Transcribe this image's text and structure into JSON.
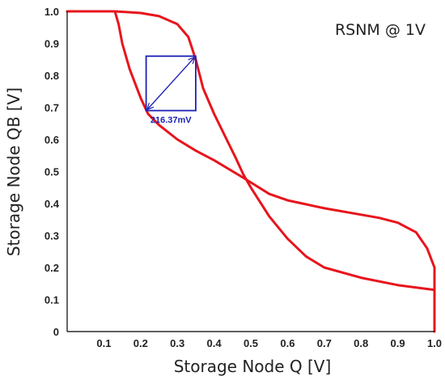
{
  "chart_data": {
    "type": "line",
    "title": "",
    "xlabel": "Storage Node Q [V]",
    "ylabel": "Storage Node QB [V]",
    "annotation": "RSNM @ 1V",
    "xlim": [
      0,
      1
    ],
    "ylim": [
      0,
      1
    ],
    "x_ticks": [
      "0.1",
      "0.2",
      "0.3",
      "0.4",
      "0.5",
      "0.6",
      "0.7",
      "0.8",
      "0.9",
      "1.0"
    ],
    "y_ticks": [
      "0",
      "0.1",
      "0.2",
      "0.3",
      "0.4",
      "0.5",
      "0.6",
      "0.7",
      "0.8",
      "0.9",
      "1.0"
    ],
    "grid": false,
    "colors": {
      "curve": "#e8141c",
      "square": "#1c22b4",
      "axis": "#000000"
    },
    "series": [
      {
        "points": [
          [
            0.0,
            1.0
          ],
          [
            0.13,
            1.0
          ],
          [
            0.2,
            0.995
          ],
          [
            0.25,
            0.985
          ],
          [
            0.3,
            0.96
          ],
          [
            0.33,
            0.92
          ],
          [
            0.35,
            0.85
          ],
          [
            0.37,
            0.76
          ],
          [
            0.4,
            0.68
          ],
          [
            0.43,
            0.61
          ],
          [
            0.46,
            0.54
          ],
          [
            0.48,
            0.49
          ],
          [
            0.5,
            0.45
          ],
          [
            0.55,
            0.36
          ],
          [
            0.6,
            0.29
          ],
          [
            0.65,
            0.235
          ],
          [
            0.7,
            0.2
          ],
          [
            0.8,
            0.168
          ],
          [
            0.9,
            0.145
          ],
          [
            1.0,
            0.13
          ]
        ]
      },
      {
        "points": [
          [
            0.13,
            1.0
          ],
          [
            0.14,
            0.96
          ],
          [
            0.15,
            0.9
          ],
          [
            0.17,
            0.82
          ],
          [
            0.2,
            0.73
          ],
          [
            0.22,
            0.68
          ],
          [
            0.25,
            0.645
          ],
          [
            0.3,
            0.6
          ],
          [
            0.35,
            0.565
          ],
          [
            0.4,
            0.535
          ],
          [
            0.48,
            0.48
          ],
          [
            0.55,
            0.43
          ],
          [
            0.6,
            0.41
          ],
          [
            0.7,
            0.385
          ],
          [
            0.8,
            0.365
          ],
          [
            0.85,
            0.355
          ],
          [
            0.9,
            0.34
          ],
          [
            0.95,
            0.31
          ],
          [
            0.98,
            0.26
          ],
          [
            1.0,
            0.2
          ],
          [
            1.0,
            0.0
          ]
        ]
      }
    ],
    "noise_margin_square": {
      "x1": 0.215,
      "x2": 0.35,
      "y1": 0.69,
      "y2": 0.86,
      "label": "216.37mV"
    }
  }
}
